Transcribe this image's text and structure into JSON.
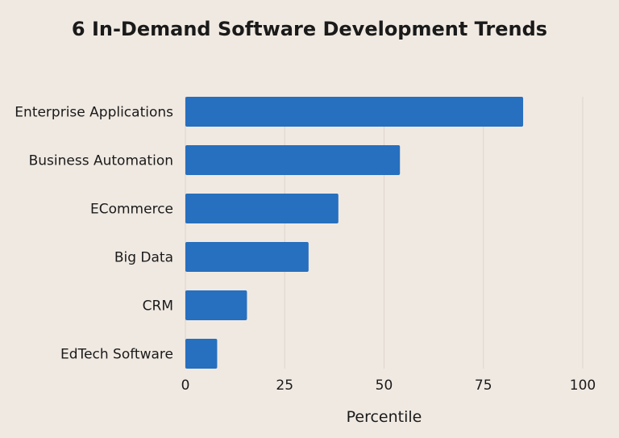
{
  "chart_data": {
    "type": "bar",
    "orientation": "horizontal",
    "title": "6 In-Demand Software Development Trends",
    "xlabel": "Percentile",
    "ylabel": "",
    "categories": [
      "Enterprise Applications",
      "Business Automation",
      "ECommerce",
      "Big Data",
      "CRM",
      "EdTech Software"
    ],
    "values": [
      85,
      54,
      38.5,
      31,
      15.5,
      8
    ],
    "xlim": [
      0,
      100
    ],
    "xticks": [
      "0",
      "25",
      "50",
      "75",
      "100"
    ],
    "grid": "vertical",
    "bar_color": "#276fbf",
    "background": "#f0e9e2"
  }
}
